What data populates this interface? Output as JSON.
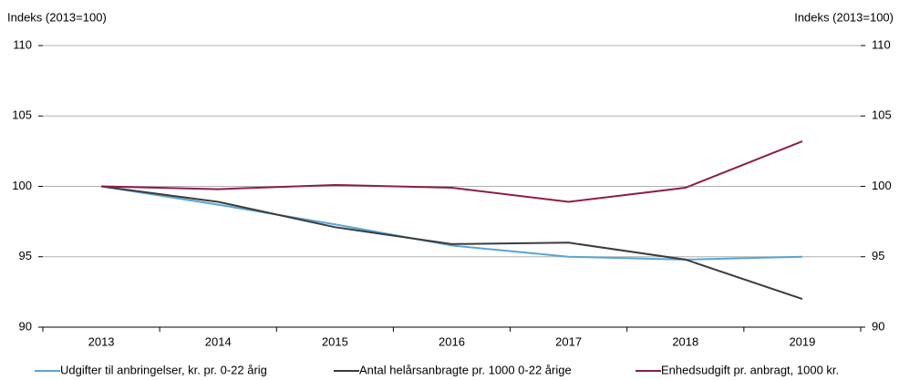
{
  "chart_data": {
    "type": "line",
    "y_label": "Indeks (2013=100)",
    "y2_label": "Indeks (2013=100)",
    "categories": [
      "2013",
      "2014",
      "2015",
      "2016",
      "2017",
      "2018",
      "2019"
    ],
    "series": [
      {
        "name": "Udgifter til anbringelser, kr. pr. 0-22 årig",
        "color": "#5ba3d6",
        "values": [
          100,
          98.7,
          97.3,
          95.8,
          95.0,
          94.8,
          95.0
        ]
      },
      {
        "name": "Antal helårsanbragte pr. 1000 0-22 årige",
        "color": "#3c3c3c",
        "values": [
          100,
          98.9,
          97.1,
          95.9,
          96.0,
          94.8,
          92.0
        ]
      },
      {
        "name": "Enhedsudgift pr. anbragt, 1000 kr.",
        "color": "#8c1c4c",
        "values": [
          100,
          99.8,
          100.1,
          99.9,
          98.9,
          99.9,
          103.2
        ]
      }
    ],
    "ylim": [
      90,
      110
    ],
    "yticks": [
      90,
      95,
      100,
      105,
      110
    ],
    "y2lim": [
      90,
      110
    ],
    "y2ticks": [
      90,
      95,
      100,
      105,
      110
    ],
    "grid": true
  }
}
